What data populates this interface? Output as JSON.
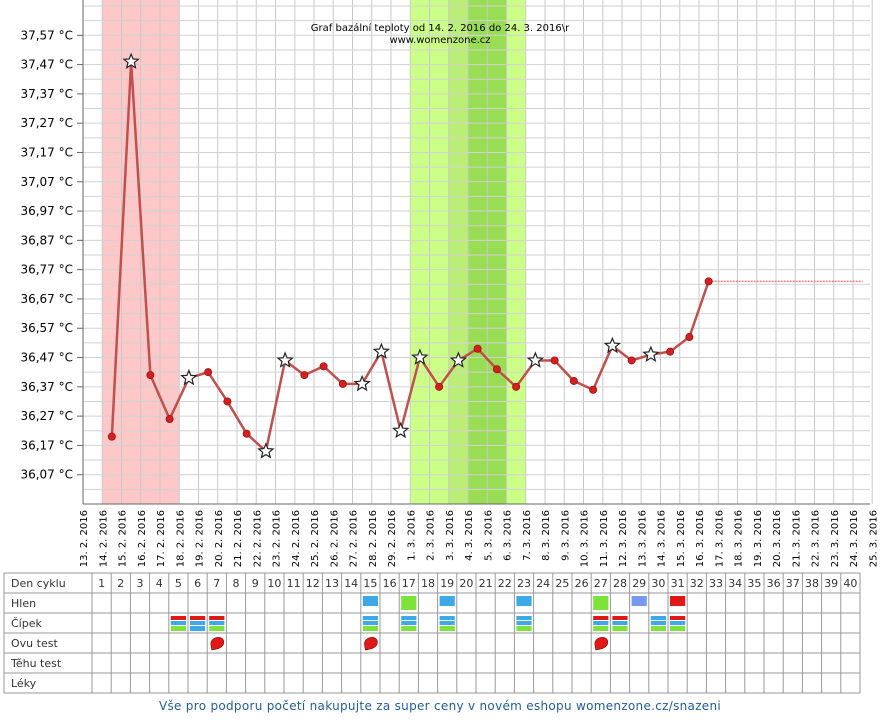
{
  "chart_data": {
    "type": "line",
    "title": "Graf bazální teploty od 14. 2. 2016 do 24. 3. 2016\\r",
    "subtitle": "www.womenzone.cz",
    "y_ticks": [
      "37,57 °C",
      "37,47 °C",
      "37,37 °C",
      "37,27 °C",
      "37,17 °C",
      "37,07 °C",
      "36,97 °C",
      "36,87 °C",
      "36,77 °C",
      "36,67 °C",
      "36,57 °C",
      "36,47 °C",
      "36,37 °C",
      "36,27 °C",
      "36,17 °C",
      "36,07 °C"
    ],
    "y_tick_values": [
      37.57,
      37.47,
      37.37,
      37.27,
      37.17,
      37.07,
      36.97,
      36.87,
      36.77,
      36.67,
      36.57,
      36.47,
      36.37,
      36.27,
      36.17,
      36.07
    ],
    "ylim": [
      35.97,
      37.67
    ],
    "x_dates": [
      "13. 2. 2016",
      "14. 2. 2016",
      "15. 2. 2016",
      "16. 2. 2016",
      "17. 2. 2016",
      "18. 2. 2016",
      "19. 2. 2016",
      "20. 2. 2016",
      "21. 2. 2016",
      "22. 2. 2016",
      "23. 2. 2016",
      "24. 2. 2016",
      "25. 2. 2016",
      "26. 2. 2016",
      "27. 2. 2016",
      "28. 2. 2016",
      "29. 2. 2016",
      "1. 3. 2016",
      "2. 3. 2016",
      "3. 3. 2016",
      "4. 3. 2016",
      "5. 3. 2016",
      "6. 3. 2016",
      "7. 3. 2016",
      "8. 3. 2016",
      "9. 3. 2016",
      "10. 3. 2016",
      "11. 3. 2016",
      "12. 3. 2016",
      "13. 3. 2016",
      "14. 3. 2016",
      "15. 3. 2016",
      "16. 3. 2016",
      "17. 3. 2016",
      "18. 3. 2016",
      "19. 3. 2016",
      "20. 3. 2016",
      "21. 3. 2016",
      "22. 3. 2016",
      "23. 3. 2016",
      "24. 3. 2016",
      "25. 3. 2016"
    ],
    "series": [
      {
        "color": "#c0504d",
        "cycle_days": [
          1,
          2,
          3,
          4,
          5,
          6,
          7,
          8,
          9,
          10,
          11,
          12,
          13,
          14,
          15,
          16,
          17,
          18,
          19,
          20,
          21,
          22,
          23,
          24,
          25,
          26,
          27,
          28,
          29,
          30,
          31,
          32
        ],
        "values": [
          36.2,
          37.48,
          36.41,
          36.26,
          36.4,
          36.42,
          36.32,
          36.21,
          36.15,
          36.46,
          36.41,
          36.44,
          36.38,
          36.38,
          36.49,
          36.22,
          36.47,
          36.37,
          36.46,
          36.5,
          36.43,
          36.37,
          36.46,
          36.46,
          36.39,
          36.36,
          36.51,
          36.46,
          36.48,
          36.49,
          36.54,
          36.73
        ],
        "star_days": [
          2,
          5,
          9,
          10,
          14,
          15,
          16,
          17,
          19,
          23,
          27,
          29
        ],
        "projection": {
          "from_day": 32,
          "to_day": 40,
          "value": 36.73
        }
      }
    ],
    "bands": [
      {
        "from_day": 1,
        "to_day": 4,
        "color": "#ffc8c8"
      },
      {
        "from_day": 17,
        "to_day": 22,
        "color": "#ccff88"
      },
      {
        "from_day": 19,
        "to_day": 20,
        "color": "#bbee77"
      },
      {
        "from_day": 20,
        "to_day": 21,
        "color": "#99dd55"
      }
    ],
    "grid": true
  },
  "table": {
    "row_labels": [
      "Den cyklu",
      "Hlen",
      "Čípek",
      "Ovu test",
      "Těhu test",
      "Léky"
    ],
    "days": [
      1,
      2,
      3,
      4,
      5,
      6,
      7,
      8,
      9,
      10,
      11,
      12,
      13,
      14,
      15,
      16,
      17,
      18,
      19,
      20,
      21,
      22,
      23,
      24,
      25,
      26,
      27,
      28,
      29,
      30,
      31,
      32,
      33,
      34,
      35,
      36,
      37,
      38,
      39,
      40
    ],
    "hlen": [
      {
        "day": 15,
        "color": "#3da9e6"
      },
      {
        "day": 17,
        "color": "#7de33a"
      },
      {
        "day": 19,
        "color": "#3da9e6"
      },
      {
        "day": 23,
        "color": "#3da9e6"
      },
      {
        "day": 27,
        "color": "#7de33a"
      },
      {
        "day": 29,
        "color": "#7799ee"
      },
      {
        "day": 31,
        "color": "#e01818"
      }
    ],
    "cipek": [
      {
        "day": 5,
        "colors": [
          "#e01818",
          "#7de33a"
        ]
      },
      {
        "day": 6,
        "colors": [
          "#e01818",
          "#3da9e6"
        ]
      },
      {
        "day": 7,
        "colors": [
          "#e01818",
          "#7de33a"
        ]
      },
      {
        "day": 15,
        "colors": [
          "#3da9e6",
          "#7de33a"
        ]
      },
      {
        "day": 17,
        "colors": [
          "#3da9e6",
          "#7de33a"
        ]
      },
      {
        "day": 19,
        "colors": [
          "#3da9e6",
          "#7de33a"
        ]
      },
      {
        "day": 23,
        "colors": [
          "#3da9e6",
          "#7de33a"
        ]
      },
      {
        "day": 27,
        "colors": [
          "#e01818",
          "#7de33a"
        ]
      },
      {
        "day": 28,
        "colors": [
          "#e01818",
          "#7de33a"
        ]
      },
      {
        "day": 30,
        "colors": [
          "#3da9e6",
          "#7de33a"
        ]
      },
      {
        "day": 31,
        "colors": [
          "#e01818",
          "#7de33a"
        ]
      }
    ],
    "ovu_test_days": [
      7,
      15,
      27
    ],
    "ovu_icon": "positive-drop-icon"
  },
  "footer": {
    "text": "Vše pro podporu početí nakupujte za super ceny v novém eshopu womenzone.cz/snazeni"
  }
}
